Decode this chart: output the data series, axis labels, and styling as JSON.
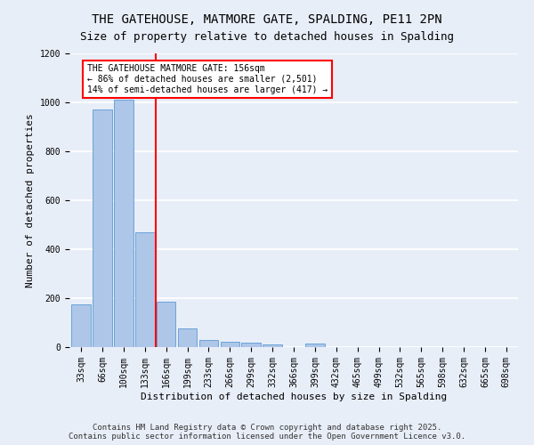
{
  "title_line1": "THE GATEHOUSE, MATMORE GATE, SPALDING, PE11 2PN",
  "title_line2": "Size of property relative to detached houses in Spalding",
  "xlabel": "Distribution of detached houses by size in Spalding",
  "ylabel": "Number of detached properties",
  "categories": [
    "33sqm",
    "66sqm",
    "100sqm",
    "133sqm",
    "166sqm",
    "199sqm",
    "233sqm",
    "266sqm",
    "299sqm",
    "332sqm",
    "366sqm",
    "399sqm",
    "432sqm",
    "465sqm",
    "499sqm",
    "532sqm",
    "565sqm",
    "598sqm",
    "632sqm",
    "665sqm",
    "698sqm"
  ],
  "values": [
    175,
    970,
    1010,
    470,
    185,
    75,
    30,
    22,
    18,
    12,
    0,
    15,
    0,
    0,
    0,
    0,
    0,
    0,
    0,
    0,
    0
  ],
  "bar_color": "#aec6e8",
  "bar_edge_color": "#5b9bd5",
  "annotation_box_text": "THE GATEHOUSE MATMORE GATE: 156sqm\n← 86% of detached houses are smaller (2,501)\n14% of semi-detached houses are larger (417) →",
  "ylim": [
    0,
    1200
  ],
  "yticks": [
    0,
    200,
    400,
    600,
    800,
    1000,
    1200
  ],
  "background_color": "#e8eef8",
  "grid_color": "#ffffff",
  "footer_line1": "Contains HM Land Registry data © Crown copyright and database right 2025.",
  "footer_line2": "Contains public sector information licensed under the Open Government Licence v3.0.",
  "annotation_fontsize": 7,
  "title_fontsize": 10,
  "subtitle_fontsize": 9,
  "axis_label_fontsize": 8,
  "tick_fontsize": 7,
  "footer_fontsize": 6.5,
  "red_line_index": 3.5
}
